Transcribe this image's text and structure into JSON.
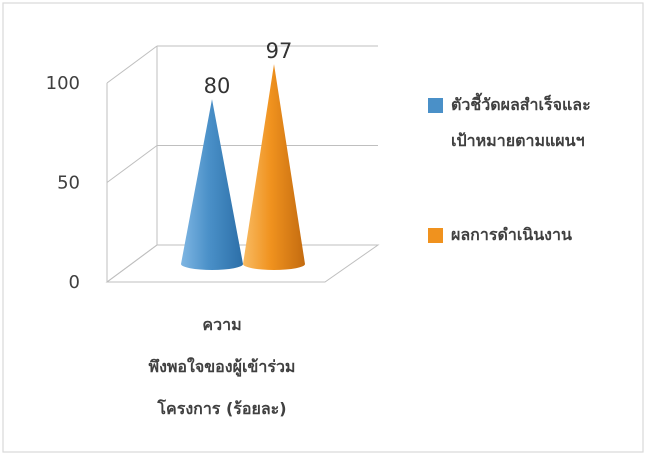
{
  "chart_data": {
    "type": "cone",
    "categories": [
      "ความ\nพึงพอใจของผู้เข้าร่วม\nโครงการ (ร้อยละ)"
    ],
    "category_lines": [
      "ความ",
      "พึงพอใจของผู้เข้าร่วม",
      "โครงการ (ร้อยละ)"
    ],
    "series": [
      {
        "name": "ตัวชี้วัดผลสำเร็จและเป้าหมายตามแผนฯ",
        "name_lines": [
          "ตัวชี้วัดผลสำเร็จและ",
          "เป้าหมายตามแผนฯ"
        ],
        "values": [
          80
        ],
        "value_label": "80",
        "color": "#4a90c8"
      },
      {
        "name": "ผลการดำเนินงาน",
        "name_lines": [
          "ผลการดำเนินงาน"
        ],
        "values": [
          97
        ],
        "value_label": "97",
        "color": "#f0921e"
      }
    ],
    "ylim": [
      0,
      100
    ],
    "yticks": [
      0,
      50,
      100
    ],
    "ytick_labels": [
      "0",
      "50",
      "100"
    ],
    "grid": true,
    "legend_position": "right"
  }
}
